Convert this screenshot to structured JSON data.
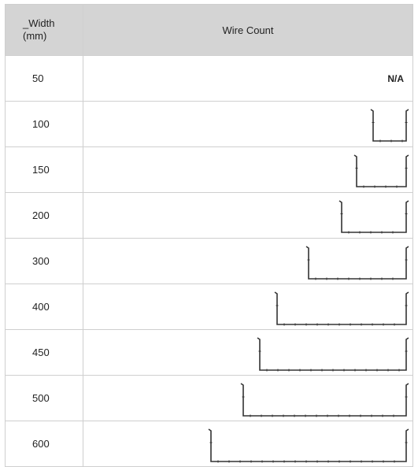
{
  "table": {
    "header": {
      "width_line1": "_Width",
      "width_line2": "(mm)",
      "count": "Wire Count"
    },
    "rows": [
      {
        "width": "50",
        "na": "N/A"
      },
      {
        "width": "100"
      },
      {
        "width": "150"
      },
      {
        "width": "200"
      },
      {
        "width": "300"
      },
      {
        "width": "400"
      },
      {
        "width": "450"
      },
      {
        "width": "500"
      },
      {
        "width": "600"
      }
    ],
    "line_color": "#333333"
  }
}
